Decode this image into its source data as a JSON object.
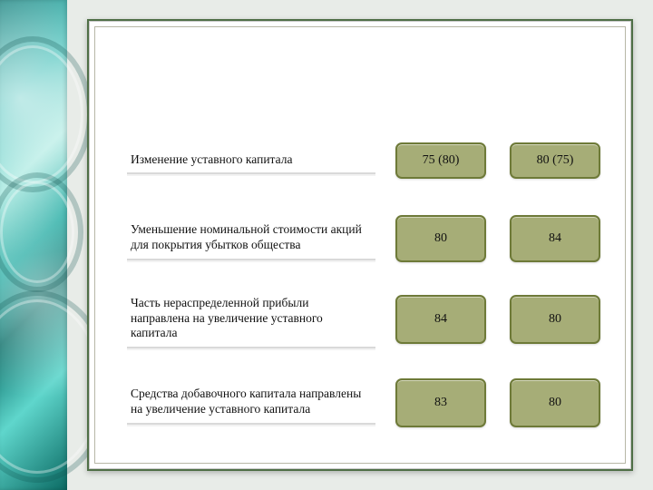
{
  "colors": {
    "pill_bg": "#a6ad77",
    "pill_border": "#6e7a38",
    "card_border": "#4f6f46",
    "page_bg": "#e8ece8"
  },
  "rows": [
    {
      "label": "Изменение уставного капитала",
      "col1": "75 (80)",
      "col2": "80 (75)",
      "pill_height": 36,
      "tall": false
    },
    {
      "label": "Уменьшение номинальной стоимости акций для покрытия убытков общества",
      "col1": "80",
      "col2": "84",
      "pill_height": 48,
      "tall": false
    },
    {
      "label": "Часть нераспределенной прибыли направлена на увеличение уставного капитала",
      "col1": "84",
      "col2": "80",
      "pill_height": 50,
      "tall": true
    },
    {
      "label": "Средства добавочного капитала направлены на увеличение уставного капитала",
      "col1": "83",
      "col2": "80",
      "pill_height": 50,
      "tall": true
    }
  ]
}
